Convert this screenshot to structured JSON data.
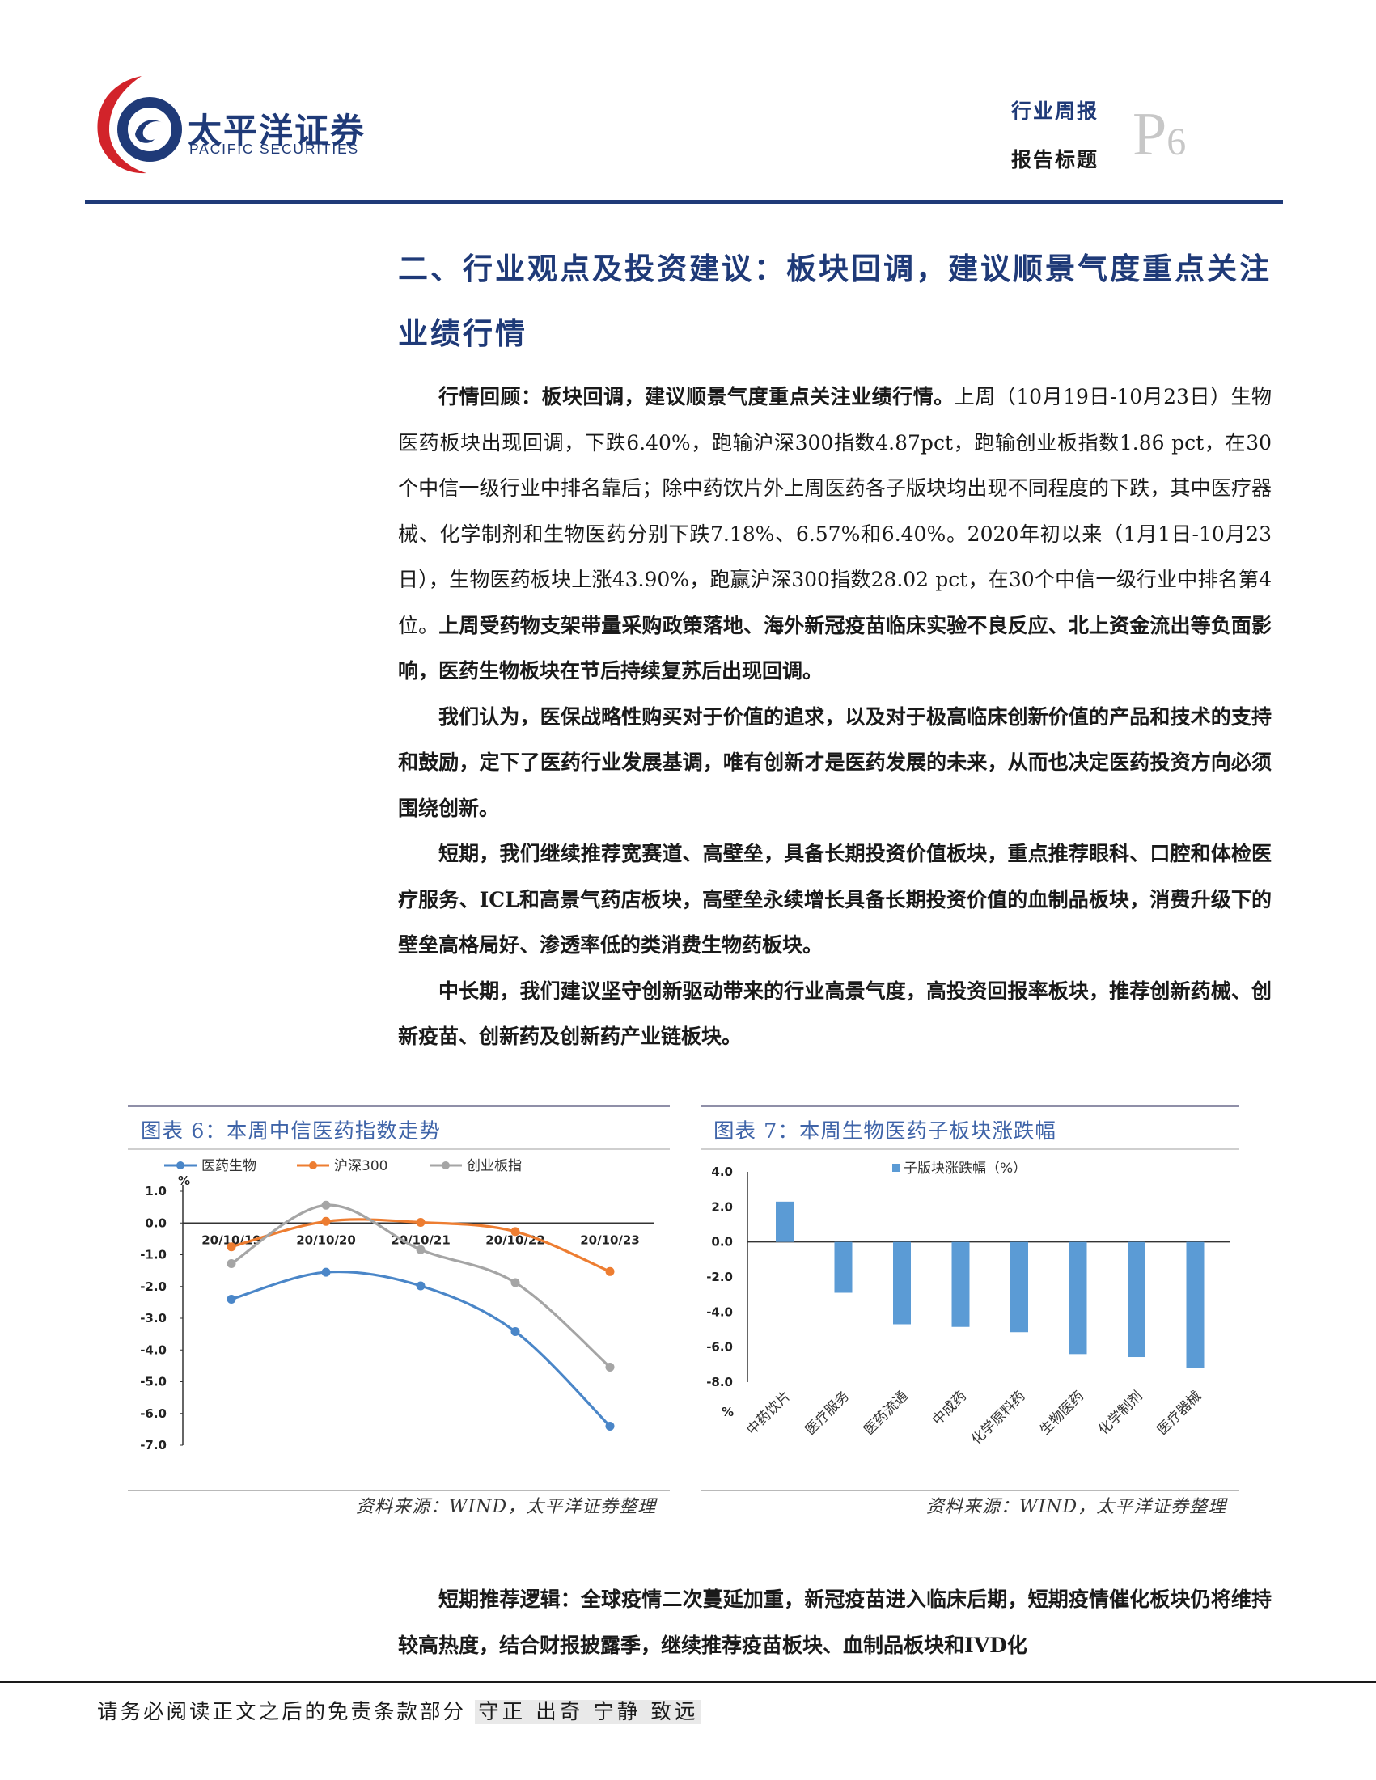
{
  "header": {
    "brand_cn": "太平洋证券",
    "brand_en": "PACIFIC SECURITIES",
    "report_type": "行业周报",
    "report_title": "报告标题",
    "page_letter": "P",
    "page_number": "6",
    "colors": {
      "brand_blue": "#1f3a78",
      "logo_red": "#d2232a"
    }
  },
  "section_heading": "二、行业观点及投资建议：板块回调，建议顺景气度重点关注业绩行情",
  "paragraphs": [
    [
      {
        "text": "行情回顾：板块回调，建议顺景气度重点关注业绩行情。",
        "bold": true
      },
      {
        "text": "上周（10月19日-10月23日）生物医药板块出现回调，下跌6.40%，跑输沪深300指数4.87pct，跑输创业板指数1.86 pct，在30个中信一级行业中排名靠后；除中药饮片外上周医药各子版块均出现不同程度的下跌，其中医疗器械、化学制剂和生物医药分别下跌7.18%、6.57%和6.40%。2020年初以来（1月1日-10月23日），生物医药板块上涨43.90%，跑赢沪深300指数28.02 pct，在30个中信一级行业中排名第4位。",
        "bold": false
      },
      {
        "text": "上周受药物支架带量采购政策落地、海外新冠疫苗临床实验不良反应、北上资金流出等负面影响，医药生物板块在节后持续复苏后出现回调。",
        "bold": true
      }
    ],
    [
      {
        "text": "我们认为，医保战略性购买对于价值的追求，以及对于极高临床创新价值的产品和技术的支持和鼓励，定下了医药行业发展基调，唯有创新才是医药发展的未来，从而也决定医药投资方向必须围绕创新。",
        "bold": true
      }
    ],
    [
      {
        "text": "短期，我们继续推荐宽赛道、高壁垒，具备长期投资价值板块，重点推荐眼科、口腔和体检医疗服务、ICL和高景气药店板块，高壁垒永续增长具备长期投资价值的血制品板块，消费升级下的壁垒高格局好、渗透率低的类消费生物药板块。",
        "bold": true
      }
    ],
    [
      {
        "text": "中长期，我们建议坚守创新驱动带来的行业高景气度，高投资回报率板块，推荐创新药械、创新疫苗、创新药及创新药产业链板块。",
        "bold": true
      }
    ]
  ],
  "figures": {
    "fig6": {
      "title": "图表 6：本周中信医药指数走势",
      "source": "资料来源：WIND，太平洋证券整理"
    },
    "fig7": {
      "title": "图表 7：本周生物医药子板块涨跌幅",
      "source": "资料来源：WIND，太平洋证券整理"
    }
  },
  "chart_data": [
    {
      "type": "line",
      "title": "",
      "unit_label": "%",
      "x": [
        "20/10/19",
        "20/10/20",
        "20/10/21",
        "20/10/22",
        "20/10/23"
      ],
      "ylim": [
        -7.0,
        1.0
      ],
      "yticks": [
        "1.0",
        "0.0",
        "-1.0",
        "-2.0",
        "-3.0",
        "-4.0",
        "-5.0",
        "-6.0",
        "-7.0"
      ],
      "legend_position": "top",
      "grid": false,
      "series": [
        {
          "name": "医药生物",
          "color": "#4a86c8",
          "values": [
            -2.4,
            -1.55,
            -1.98,
            -3.42,
            -6.4
          ]
        },
        {
          "name": "沪深300",
          "color": "#ed7d31",
          "values": [
            -0.75,
            0.05,
            0.02,
            -0.27,
            -1.53
          ]
        },
        {
          "name": "创业板指",
          "color": "#a5a5a5",
          "values": [
            -1.28,
            0.56,
            -0.84,
            -1.88,
            -4.54
          ]
        }
      ]
    },
    {
      "type": "bar",
      "title": "",
      "unit_label": "%",
      "legend": "子版块涨跌幅（%）",
      "legend_position": "top-right",
      "grid": false,
      "color": "#5b9bd5",
      "categories": [
        "中药饮片",
        "医疗服务",
        "医药流通",
        "中成药",
        "化学原料药",
        "生物医药",
        "化学制剂",
        "医疗器械"
      ],
      "values": [
        2.3,
        -2.9,
        -4.7,
        -4.85,
        -5.15,
        -6.4,
        -6.57,
        -7.18
      ],
      "ylim": [
        -8.0,
        4.0
      ],
      "yticks": [
        "4.0",
        "2.0",
        "0.0",
        "-2.0",
        "-4.0",
        "-6.0",
        "-8.0"
      ]
    }
  ],
  "bottom_paragraph": "短期推荐逻辑：全球疫情二次蔓延加重，新冠疫苗进入临床后期，短期疫情催化板块仍将维持较高热度，结合财报披露季，继续推荐疫苗板块、血制品板块和IVD化",
  "footer": {
    "disclaimer": "请务必阅读正文之后的免责条款部分",
    "motto": "守正 出奇 宁静 致远"
  }
}
